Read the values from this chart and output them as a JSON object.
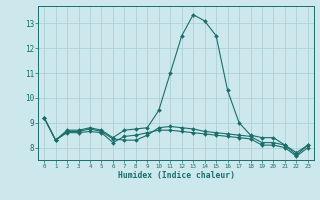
{
  "title": "",
  "xlabel": "Humidex (Indice chaleur)",
  "background_color": "#cce8ec",
  "grid_color": "#aaccd4",
  "line_color": "#1a6e6a",
  "x_values": [
    0,
    1,
    2,
    3,
    4,
    5,
    6,
    7,
    8,
    9,
    10,
    11,
    12,
    13,
    14,
    15,
    16,
    17,
    18,
    19,
    20,
    21,
    22,
    23
  ],
  "line1": [
    9.2,
    8.3,
    8.7,
    8.7,
    8.8,
    8.7,
    8.4,
    8.7,
    8.75,
    8.8,
    9.5,
    11.0,
    12.5,
    13.35,
    13.1,
    12.5,
    10.3,
    9.0,
    8.5,
    8.4,
    8.4,
    8.1,
    7.8,
    8.1
  ],
  "line2": [
    9.2,
    8.3,
    8.65,
    8.65,
    8.75,
    8.65,
    8.35,
    8.3,
    8.3,
    8.5,
    8.8,
    8.85,
    8.8,
    8.75,
    8.65,
    8.6,
    8.55,
    8.5,
    8.45,
    8.2,
    8.2,
    8.1,
    7.7,
    8.1
  ],
  "line3": [
    9.2,
    8.3,
    8.6,
    8.6,
    8.65,
    8.6,
    8.2,
    8.45,
    8.5,
    8.6,
    8.7,
    8.7,
    8.65,
    8.6,
    8.55,
    8.5,
    8.45,
    8.4,
    8.35,
    8.1,
    8.1,
    8.0,
    7.65,
    8.0
  ],
  "ylim": [
    7.5,
    13.7
  ],
  "yticks": [
    8,
    9,
    10,
    11,
    12,
    13
  ],
  "xticks": [
    0,
    1,
    2,
    3,
    4,
    5,
    6,
    7,
    8,
    9,
    10,
    11,
    12,
    13,
    14,
    15,
    16,
    17,
    18,
    19,
    20,
    21,
    22,
    23
  ]
}
